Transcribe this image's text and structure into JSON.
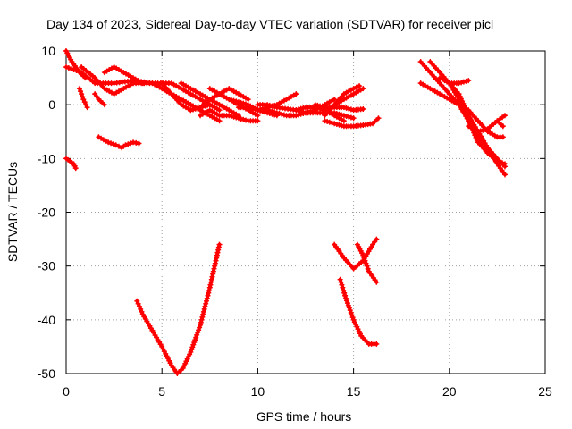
{
  "chart_data": {
    "type": "scatter",
    "title": "Day 134 of 2023, Sidereal Day-to-day VTEC variation (SDTVAR) for receiver picl",
    "xlabel": "GPS time / hours",
    "ylabel": "SDTVAR / TECUs",
    "xlim": [
      0,
      25
    ],
    "ylim": [
      -50,
      10
    ],
    "xticks": [
      0,
      5,
      10,
      15,
      20,
      25
    ],
    "yticks": [
      -50,
      -40,
      -30,
      -20,
      -10,
      0,
      10
    ],
    "grid": true,
    "marker": "+",
    "color": "#ff0000",
    "series": [
      {
        "points": [
          [
            0.0,
            10
          ],
          [
            0.3,
            8
          ],
          [
            0.7,
            6
          ],
          [
            1.0,
            5
          ]
        ]
      },
      {
        "points": [
          [
            0.0,
            7
          ],
          [
            0.8,
            6
          ],
          [
            1.5,
            4
          ],
          [
            2.5,
            4
          ],
          [
            3.5,
            4.5
          ],
          [
            4.5,
            4
          ],
          [
            5.0,
            3
          ],
          [
            5.5,
            2
          ],
          [
            6.0,
            1
          ],
          [
            6.5,
            0
          ],
          [
            7.0,
            -1
          ]
        ]
      },
      {
        "points": [
          [
            0.8,
            7
          ],
          [
            1.5,
            5
          ],
          [
            2.0,
            3
          ],
          [
            2.5,
            2
          ],
          [
            3.0,
            3
          ],
          [
            3.5,
            4
          ]
        ]
      },
      {
        "points": [
          [
            2.0,
            6
          ],
          [
            2.5,
            7
          ],
          [
            3.0,
            6
          ],
          [
            3.5,
            5
          ],
          [
            4.0,
            4
          ]
        ]
      },
      {
        "points": [
          [
            0.7,
            3
          ],
          [
            0.9,
            1
          ],
          [
            1.1,
            -0.5
          ]
        ]
      },
      {
        "points": [
          [
            1.5,
            2
          ],
          [
            1.7,
            1
          ],
          [
            2.0,
            0
          ]
        ]
      },
      {
        "points": [
          [
            0.0,
            -10
          ],
          [
            0.2,
            -10.5
          ],
          [
            0.4,
            -11
          ],
          [
            0.5,
            -11.8
          ]
        ]
      },
      {
        "points": [
          [
            1.7,
            -6
          ],
          [
            2.2,
            -7
          ],
          [
            2.6,
            -7.5
          ],
          [
            2.9,
            -8
          ],
          [
            3.1,
            -7.5
          ],
          [
            3.5,
            -7
          ],
          [
            3.8,
            -7.2
          ]
        ]
      },
      {
        "points": [
          [
            3.5,
            4
          ],
          [
            4.5,
            4
          ],
          [
            5.5,
            4
          ],
          [
            6.0,
            3
          ],
          [
            6.5,
            2
          ],
          [
            7.0,
            1
          ],
          [
            7.5,
            0
          ],
          [
            8.0,
            -1
          ]
        ]
      },
      {
        "points": [
          [
            5.0,
            3
          ],
          [
            5.5,
            2
          ],
          [
            6.0,
            1
          ],
          [
            6.5,
            0
          ],
          [
            7.0,
            -1
          ],
          [
            7.5,
            -2
          ],
          [
            8.0,
            -3
          ]
        ]
      },
      {
        "points": [
          [
            5.0,
            4
          ],
          [
            5.5,
            2
          ],
          [
            6.0,
            0
          ],
          [
            6.5,
            -1
          ],
          [
            7.0,
            -0.5
          ],
          [
            7.5,
            0
          ]
        ]
      },
      {
        "points": [
          [
            6.0,
            4
          ],
          [
            6.5,
            3
          ],
          [
            7.0,
            2
          ],
          [
            7.5,
            1
          ],
          [
            8.0,
            0
          ],
          [
            8.5,
            -1
          ],
          [
            9.0,
            -2
          ]
        ]
      },
      {
        "points": [
          [
            6.5,
            -1
          ],
          [
            7.0,
            -0.5
          ],
          [
            7.5,
            1
          ],
          [
            8.0,
            2
          ],
          [
            8.5,
            3
          ],
          [
            9.0,
            2
          ],
          [
            9.5,
            1
          ]
        ]
      },
      {
        "points": [
          [
            7.5,
            3
          ],
          [
            8.0,
            2
          ],
          [
            8.5,
            1
          ],
          [
            9.0,
            0
          ],
          [
            9.5,
            -1
          ],
          [
            10.0,
            -2
          ]
        ]
      },
      {
        "points": [
          [
            7.0,
            -2
          ],
          [
            7.5,
            -1
          ],
          [
            8.0,
            -2
          ],
          [
            8.5,
            -2
          ],
          [
            9.0,
            -2.5
          ],
          [
            9.5,
            -3
          ],
          [
            10.0,
            -3
          ]
        ]
      },
      {
        "points": [
          [
            8.5,
            1
          ],
          [
            9.0,
            0.5
          ],
          [
            9.5,
            0
          ],
          [
            10.0,
            -1
          ],
          [
            10.5,
            -1.5
          ],
          [
            11.0,
            -2
          ]
        ]
      },
      {
        "points": [
          [
            9.0,
            -0.5
          ],
          [
            9.5,
            -0.5
          ],
          [
            10.0,
            -1
          ],
          [
            10.5,
            -0.5
          ],
          [
            11.0,
            0
          ],
          [
            11.5,
            1
          ],
          [
            12.0,
            2
          ]
        ]
      },
      {
        "points": [
          [
            10.5,
            -1
          ],
          [
            11.0,
            -1.5
          ],
          [
            11.5,
            -2
          ],
          [
            12.0,
            -2
          ],
          [
            12.5,
            -1.5
          ],
          [
            13.0,
            -1
          ],
          [
            13.5,
            0
          ],
          [
            14.0,
            1
          ]
        ]
      },
      {
        "points": [
          [
            10.0,
            0
          ],
          [
            10.5,
            0
          ],
          [
            11.0,
            -0.5
          ],
          [
            12.0,
            -1
          ],
          [
            12.5,
            -0.5
          ],
          [
            13.0,
            -0.5
          ],
          [
            13.5,
            -1
          ],
          [
            14.0,
            -2
          ],
          [
            14.5,
            -3
          ]
        ]
      },
      {
        "points": [
          [
            12.0,
            -1
          ],
          [
            12.5,
            -1.5
          ],
          [
            13.0,
            -1.5
          ],
          [
            13.5,
            -1.5
          ],
          [
            14.0,
            -1.5
          ],
          [
            14.5,
            -2
          ],
          [
            15.0,
            -2.5
          ]
        ]
      },
      {
        "points": [
          [
            13.0,
            0
          ],
          [
            13.5,
            -0.5
          ],
          [
            14.0,
            -0.5
          ],
          [
            14.5,
            -0.5
          ],
          [
            15.0,
            -1
          ],
          [
            15.5,
            -0.8
          ]
        ]
      },
      {
        "points": [
          [
            13.5,
            -3
          ],
          [
            14.0,
            -3.5
          ],
          [
            14.5,
            -4
          ],
          [
            15.0,
            -4
          ],
          [
            15.5,
            -3.8
          ],
          [
            16.0,
            -3.5
          ],
          [
            16.3,
            -2.5
          ]
        ]
      },
      {
        "points": [
          [
            13.5,
            -2
          ],
          [
            14.0,
            0
          ],
          [
            14.5,
            2
          ],
          [
            15.0,
            3
          ],
          [
            15.3,
            3.5
          ]
        ]
      },
      {
        "points": [
          [
            14.0,
            0
          ],
          [
            14.5,
            1
          ],
          [
            15.0,
            2
          ],
          [
            15.5,
            3
          ]
        ]
      },
      {
        "points": [
          [
            18.5,
            4
          ],
          [
            19.0,
            3
          ],
          [
            19.5,
            2
          ],
          [
            20.0,
            1
          ],
          [
            20.5,
            0
          ],
          [
            21.0,
            -1
          ],
          [
            21.5,
            -3
          ],
          [
            22.0,
            -5
          ],
          [
            22.5,
            -6
          ],
          [
            22.8,
            -6
          ]
        ]
      },
      {
        "points": [
          [
            18.5,
            8
          ],
          [
            19.0,
            6
          ],
          [
            19.5,
            4
          ],
          [
            20.0,
            2
          ],
          [
            20.5,
            0
          ],
          [
            21.0,
            -3
          ],
          [
            21.5,
            -6
          ],
          [
            22.0,
            -8
          ],
          [
            22.5,
            -10
          ],
          [
            22.9,
            -11.5
          ]
        ]
      },
      {
        "points": [
          [
            19.0,
            8
          ],
          [
            19.5,
            6
          ],
          [
            20.0,
            4
          ],
          [
            20.5,
            1
          ],
          [
            21.0,
            -3
          ],
          [
            21.5,
            -7
          ],
          [
            22.0,
            -9
          ],
          [
            22.5,
            -10.5
          ],
          [
            22.9,
            -11
          ]
        ]
      },
      {
        "points": [
          [
            19.5,
            5
          ],
          [
            20.0,
            4
          ],
          [
            20.5,
            4
          ],
          [
            21.0,
            4.5
          ]
        ]
      },
      {
        "points": [
          [
            20.0,
            4
          ],
          [
            20.5,
            2
          ],
          [
            21.0,
            -2
          ],
          [
            21.5,
            -5
          ],
          [
            22.0,
            -8
          ],
          [
            22.5,
            -11
          ],
          [
            22.9,
            -13
          ]
        ]
      },
      {
        "points": [
          [
            21.0,
            -4
          ],
          [
            21.5,
            -5
          ],
          [
            22.0,
            -4.5
          ],
          [
            22.5,
            -3
          ],
          [
            22.9,
            -2
          ]
        ]
      },
      {
        "points": [
          [
            22.5,
            -3
          ],
          [
            22.8,
            -4
          ]
        ]
      },
      {
        "points": [
          [
            3.7,
            -36.5
          ],
          [
            4.0,
            -39
          ],
          [
            4.5,
            -42
          ],
          [
            5.0,
            -45
          ],
          [
            5.5,
            -48.5
          ],
          [
            5.8,
            -50
          ],
          [
            6.1,
            -49
          ],
          [
            6.5,
            -46
          ],
          [
            7.0,
            -41
          ],
          [
            7.5,
            -34
          ],
          [
            8.0,
            -26
          ]
        ]
      },
      {
        "points": [
          [
            14.3,
            -32.5
          ],
          [
            14.6,
            -36
          ],
          [
            15.0,
            -40
          ],
          [
            15.4,
            -43
          ],
          [
            15.8,
            -44.5
          ],
          [
            16.2,
            -44.5
          ]
        ]
      },
      {
        "points": [
          [
            14.0,
            -26
          ],
          [
            14.5,
            -28.5
          ],
          [
            15.0,
            -30.5
          ],
          [
            15.5,
            -29
          ],
          [
            16.0,
            -26
          ],
          [
            16.2,
            -25
          ]
        ]
      },
      {
        "points": [
          [
            15.2,
            -26
          ],
          [
            15.5,
            -28
          ],
          [
            15.8,
            -31
          ],
          [
            16.2,
            -33
          ]
        ]
      }
    ]
  }
}
